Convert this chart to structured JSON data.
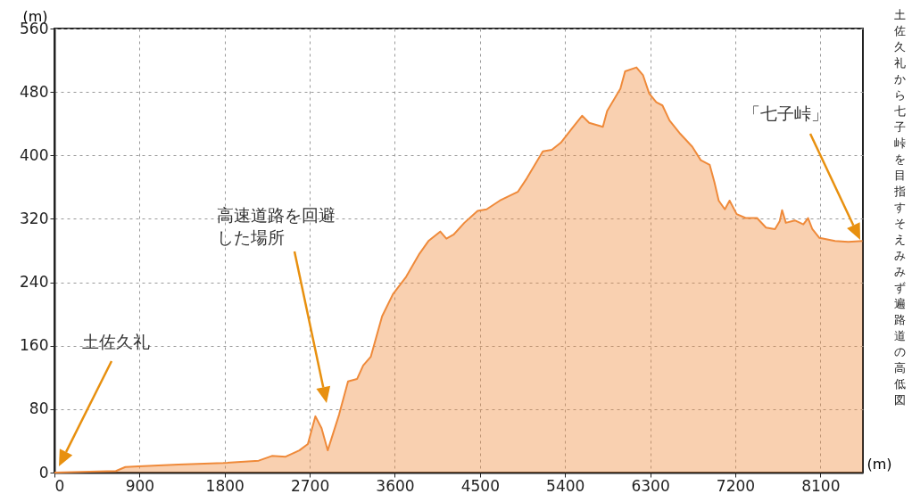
{
  "chart_data": {
    "type": "area",
    "title": "土佐久礼から七子峠を目指すそえみみず遍路道の高低図",
    "xlabel": "(m)",
    "ylabel": "(m)",
    "xlim": [
      0,
      8550
    ],
    "ylim": [
      0,
      560
    ],
    "xticks": [
      0,
      900,
      1800,
      2700,
      3600,
      4500,
      5400,
      6300,
      7200,
      8100
    ],
    "yticks": [
      0,
      80,
      160,
      240,
      320,
      400,
      480,
      560
    ],
    "grid": true,
    "annotations": [
      "土佐久礼",
      "高速道路を回避した場所",
      "「七子峠」"
    ],
    "series": [
      {
        "color": "#ef8a3a",
        "x": [
          0,
          650,
          750,
          890,
          1310,
          1785,
          2160,
          2300,
          2445,
          2590,
          2680,
          2760,
          2825,
          2890,
          3010,
          3105,
          3200,
          3265,
          3345,
          3465,
          3580,
          3720,
          3860,
          3955,
          4080,
          4145,
          4220,
          4335,
          4475,
          4570,
          4710,
          4900,
          4995,
          5165,
          5260,
          5355,
          5467,
          5580,
          5655,
          5800,
          5845,
          5985,
          6035,
          6155,
          6225,
          6290,
          6365,
          6430,
          6505,
          6620,
          6745,
          6835,
          6930,
          6980,
          7025,
          7090,
          7140,
          7215,
          7310,
          7430,
          7525,
          7620,
          7670,
          7695,
          7735,
          7830,
          7920,
          7970,
          8015,
          8090,
          8255,
          8395,
          8545
        ],
        "values": [
          0,
          2,
          7,
          8,
          10,
          12,
          15,
          21,
          20,
          28,
          36,
          71,
          56,
          28,
          73,
          115,
          118,
          135,
          146,
          197,
          225,
          247,
          276,
          292,
          304,
          295,
          300,
          315,
          330,
          332,
          343,
          354,
          371,
          405,
          407,
          416,
          433,
          450,
          441,
          436,
          456,
          484,
          506,
          511,
          501,
          478,
          467,
          463,
          444,
          427,
          411,
          394,
          388,
          366,
          343,
          332,
          343,
          326,
          321,
          321,
          309,
          307,
          317,
          331,
          315,
          318,
          313,
          321,
          307,
          296,
          292,
          291,
          292
        ]
      }
    ]
  }
}
